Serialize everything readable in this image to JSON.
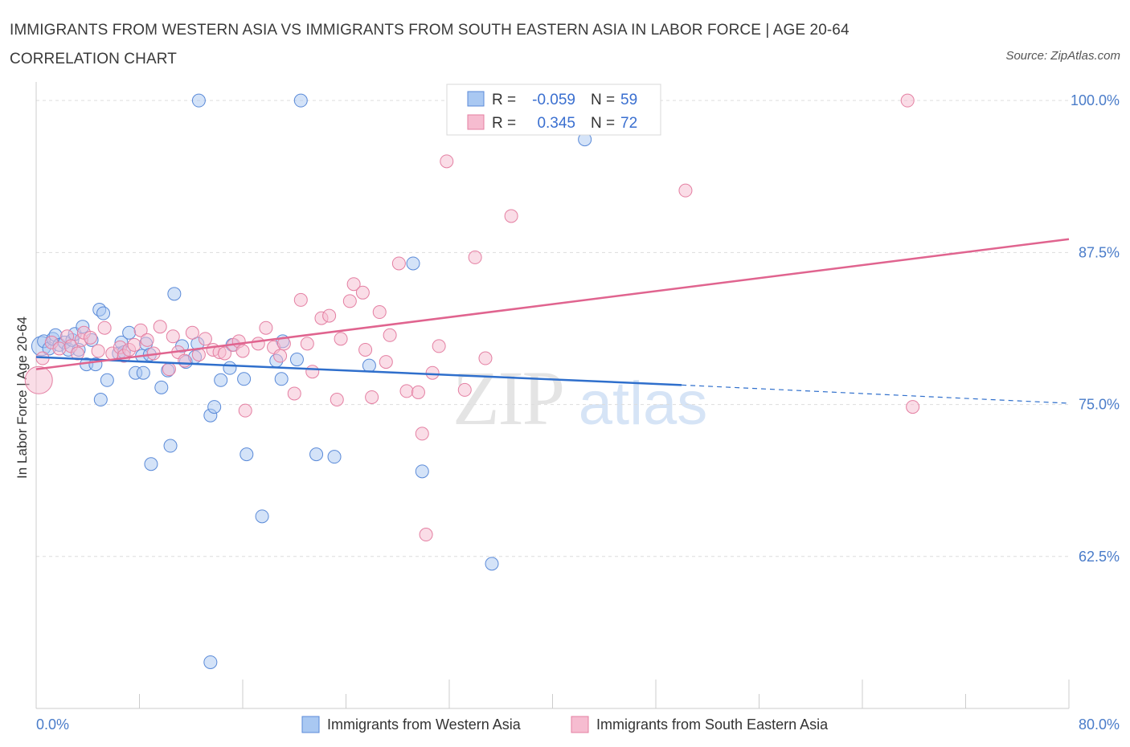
{
  "title": "IMMIGRANTS FROM WESTERN ASIA VS IMMIGRANTS FROM SOUTH EASTERN ASIA IN LABOR FORCE | AGE 20-64 CORRELATION CHART",
  "source": "Source: ZipAtlas.com",
  "watermark": {
    "zip": "ZIP",
    "atlas": "atlas"
  },
  "colors": {
    "blue_fill": "#a9c8f2",
    "blue_stroke": "#5a8ad8",
    "blue_line": "#2f6fcc",
    "pink_fill": "#f6bcd0",
    "pink_stroke": "#e47fa2",
    "pink_line": "#e0648f",
    "tick": "#4a7cc9",
    "grid": "#dddddd"
  },
  "legend_box": {
    "rows": [
      {
        "r_label": "R =",
        "r_value": "-0.059",
        "n_label": "N =",
        "n_value": "59"
      },
      {
        "r_label": "R =",
        "r_value": "0.345",
        "n_label": "N =",
        "n_value": "72"
      }
    ]
  },
  "chart_data": {
    "type": "scatter",
    "title": "IMMIGRANTS FROM WESTERN ASIA VS IMMIGRANTS FROM SOUTH EASTERN ASIA IN LABOR FORCE | AGE 20-64 CORRELATION CHART",
    "xlabel": "",
    "ylabel": "In Labor Force | Age 20-64",
    "xlim": [
      0,
      80
    ],
    "ylim": [
      50,
      101
    ],
    "x_tick_labels": [
      "0.0%",
      "80.0%"
    ],
    "y_ticks": [
      62.5,
      75.0,
      87.5,
      100.0
    ],
    "y_tick_labels": [
      "62.5%",
      "75.0%",
      "87.5%",
      "100.0%"
    ],
    "grid": true,
    "legend_position": "bottom",
    "series": [
      {
        "name": "Immigrants from Western Asia",
        "color": "#a9c8f2",
        "R": -0.059,
        "N": 59,
        "trend": {
          "x0": 0,
          "y0": 78.9,
          "x1": 50,
          "y1": 76.6,
          "dashed_to_x": 80,
          "dashed_to_y": 75.1
        },
        "points": [
          [
            0.4,
            79.8
          ],
          [
            0.6,
            80.2
          ],
          [
            1.0,
            79.6
          ],
          [
            1.3,
            80.4
          ],
          [
            1.5,
            80.7
          ],
          [
            1.8,
            79.9
          ],
          [
            2.2,
            80.1
          ],
          [
            2.5,
            79.5
          ],
          [
            2.8,
            80.3
          ],
          [
            3.0,
            80.8
          ],
          [
            3.3,
            79.5
          ],
          [
            3.6,
            81.4
          ],
          [
            3.9,
            78.3
          ],
          [
            4.3,
            80.3
          ],
          [
            4.6,
            78.3
          ],
          [
            4.9,
            82.8
          ],
          [
            5.2,
            82.5
          ],
          [
            5.5,
            77.0
          ],
          [
            5.0,
            75.4
          ],
          [
            6.4,
            79.2
          ],
          [
            6.6,
            80.1
          ],
          [
            6.8,
            79.3
          ],
          [
            7.2,
            80.9
          ],
          [
            7.7,
            77.6
          ],
          [
            8.3,
            77.6
          ],
          [
            8.5,
            80.0
          ],
          [
            8.2,
            79.0
          ],
          [
            8.8,
            79.1
          ],
          [
            9.7,
            76.4
          ],
          [
            10.2,
            77.8
          ],
          [
            10.4,
            71.6
          ],
          [
            10.7,
            84.1
          ],
          [
            11.3,
            79.8
          ],
          [
            11.6,
            78.5
          ],
          [
            12.3,
            78.9
          ],
          [
            12.5,
            80.0
          ],
          [
            13.5,
            74.1
          ],
          [
            14.3,
            77.0
          ],
          [
            13.8,
            74.8
          ],
          [
            15.0,
            78.0
          ],
          [
            15.2,
            79.9
          ],
          [
            16.1,
            77.1
          ],
          [
            16.3,
            70.9
          ],
          [
            17.5,
            65.8
          ],
          [
            18.6,
            78.6
          ],
          [
            19.1,
            80.2
          ],
          [
            19.0,
            77.1
          ],
          [
            20.2,
            78.7
          ],
          [
            21.7,
            70.9
          ],
          [
            23.1,
            70.7
          ],
          [
            25.8,
            78.2
          ],
          [
            29.2,
            86.6
          ],
          [
            29.9,
            69.5
          ],
          [
            35.3,
            61.9
          ],
          [
            42.5,
            96.8
          ],
          [
            13.5,
            53.8
          ],
          [
            12.6,
            100.0
          ],
          [
            20.5,
            100.0
          ],
          [
            8.9,
            70.1
          ]
        ]
      },
      {
        "name": "Immigrants from South Eastern Asia",
        "color": "#f6bcd0",
        "R": 0.345,
        "N": 72,
        "trend": {
          "x0": 0,
          "y0": 77.9,
          "x1": 80,
          "y1": 88.6
        },
        "points": [
          [
            0.2,
            77.0
          ],
          [
            0.5,
            78.8
          ],
          [
            1.2,
            80.1
          ],
          [
            1.8,
            79.6
          ],
          [
            2.4,
            80.6
          ],
          [
            2.7,
            79.8
          ],
          [
            3.2,
            79.2
          ],
          [
            3.5,
            80.3
          ],
          [
            3.7,
            80.9
          ],
          [
            4.2,
            80.5
          ],
          [
            4.8,
            79.4
          ],
          [
            5.3,
            81.3
          ],
          [
            5.9,
            79.2
          ],
          [
            6.5,
            79.7
          ],
          [
            6.8,
            79.0
          ],
          [
            7.2,
            79.5
          ],
          [
            7.6,
            79.9
          ],
          [
            8.1,
            81.1
          ],
          [
            8.6,
            80.3
          ],
          [
            9.1,
            79.2
          ],
          [
            9.6,
            81.4
          ],
          [
            10.3,
            77.9
          ],
          [
            10.6,
            80.6
          ],
          [
            11.0,
            79.3
          ],
          [
            11.5,
            78.6
          ],
          [
            12.1,
            80.9
          ],
          [
            12.6,
            79.1
          ],
          [
            13.1,
            80.4
          ],
          [
            13.7,
            79.5
          ],
          [
            14.2,
            79.3
          ],
          [
            14.6,
            79.2
          ],
          [
            15.3,
            79.9
          ],
          [
            15.7,
            80.2
          ],
          [
            16.0,
            79.4
          ],
          [
            16.2,
            74.5
          ],
          [
            17.2,
            80.0
          ],
          [
            17.8,
            81.3
          ],
          [
            18.4,
            79.7
          ],
          [
            18.9,
            79.0
          ],
          [
            19.2,
            80.0
          ],
          [
            20.0,
            75.9
          ],
          [
            20.5,
            83.6
          ],
          [
            21.0,
            80.0
          ],
          [
            21.4,
            77.7
          ],
          [
            22.1,
            82.1
          ],
          [
            22.7,
            82.3
          ],
          [
            23.3,
            75.4
          ],
          [
            23.6,
            80.4
          ],
          [
            24.3,
            83.5
          ],
          [
            24.6,
            84.9
          ],
          [
            25.3,
            84.2
          ],
          [
            25.5,
            79.5
          ],
          [
            26.0,
            75.6
          ],
          [
            26.6,
            82.6
          ],
          [
            27.1,
            78.5
          ],
          [
            27.4,
            80.7
          ],
          [
            28.1,
            86.6
          ],
          [
            28.7,
            76.1
          ],
          [
            29.6,
            76.0
          ],
          [
            29.9,
            72.6
          ],
          [
            30.2,
            64.3
          ],
          [
            30.7,
            77.6
          ],
          [
            31.2,
            79.8
          ],
          [
            31.8,
            95.0
          ],
          [
            33.2,
            76.2
          ],
          [
            34.0,
            87.1
          ],
          [
            34.8,
            78.8
          ],
          [
            36.8,
            90.5
          ],
          [
            43.5,
            100.0
          ],
          [
            50.3,
            92.6
          ],
          [
            67.5,
            100.0
          ],
          [
            67.9,
            74.8
          ]
        ]
      }
    ]
  }
}
